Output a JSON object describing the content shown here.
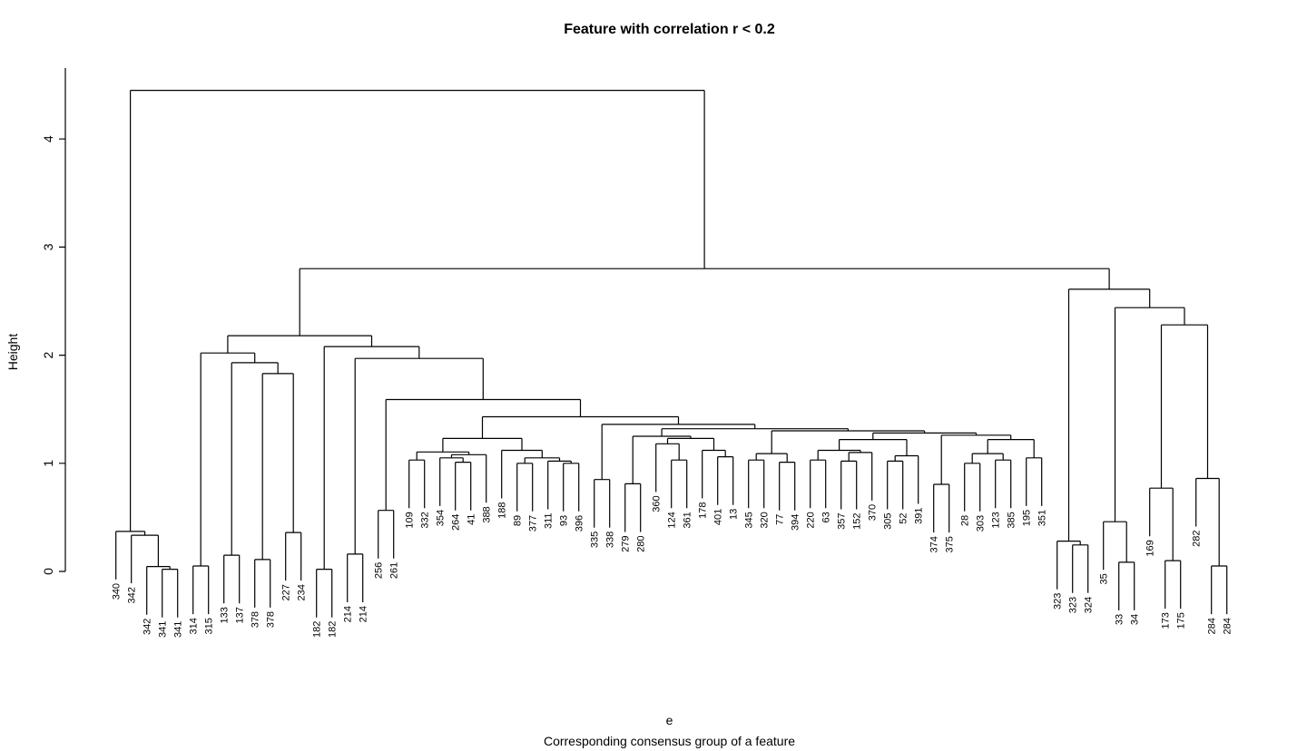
{
  "chart_data": {
    "type": "dendrogram",
    "title": "Feature with correlation r < 0.2",
    "ylabel": "Height",
    "xlabel": "e",
    "sub": "Corresponding consensus group of a feature",
    "line_color": "#000000",
    "background": "#ffffff",
    "yticks": [
      0,
      1,
      2,
      3,
      4
    ],
    "ylim": [
      0,
      4.45
    ],
    "hang_drop": 0.445,
    "leaves_in_order": [
      "340",
      "342",
      "342",
      "341",
      "341",
      "314",
      "315",
      "133",
      "137",
      "378",
      "378",
      "227",
      "234",
      "182",
      "182",
      "214",
      "214",
      "256",
      "261",
      "109",
      "332",
      "354",
      "264",
      "41",
      "388",
      "188",
      "89",
      "377",
      "311",
      "93",
      "396",
      "335",
      "338",
      "279",
      "280",
      "360",
      "124",
      "361",
      "178",
      "401",
      "13",
      "345",
      "320",
      "77",
      "394",
      "220",
      "63",
      "357",
      "152",
      "370",
      "305",
      "52",
      "391",
      "374",
      "375",
      "28",
      "303",
      "123",
      "385",
      "195",
      "351",
      "323",
      "323",
      "324",
      "35",
      "33",
      "34",
      "169",
      "173",
      "175",
      "282",
      "284",
      "284"
    ],
    "tree": {
      "h": 4.45,
      "c": [
        {
          "h": 0.37,
          "c": [
            "340",
            {
              "h": 0.335,
              "c": [
                "342",
                {
                  "h": 0.045,
                  "c": [
                    "342",
                    {
                      "h": 0.02,
                      "c": [
                        "341",
                        "341"
                      ]
                    }
                  ]
                }
              ]
            }
          ]
        },
        {
          "h": 2.8,
          "c": [
            {
              "h": 2.18,
              "c": [
                {
                  "h": 2.02,
                  "c": [
                    {
                      "h": 0.05,
                      "c": [
                        "314",
                        "315"
                      ]
                    },
                    {
                      "h": 1.93,
                      "c": [
                        {
                          "h": 0.15,
                          "c": [
                            "133",
                            "137"
                          ]
                        },
                        {
                          "h": 1.83,
                          "c": [
                            {
                              "h": 0.11,
                              "c": [
                                "378",
                                "378"
                              ]
                            },
                            {
                              "h": 0.36,
                              "c": [
                                "227",
                                "234"
                              ]
                            }
                          ]
                        }
                      ]
                    }
                  ]
                },
                {
                  "h": 2.08,
                  "c": [
                    {
                      "h": 0.02,
                      "c": [
                        "182",
                        "182"
                      ]
                    },
                    {
                      "h": 1.97,
                      "c": [
                        {
                          "h": 0.16,
                          "c": [
                            "214",
                            "214"
                          ]
                        },
                        {
                          "h": 1.59,
                          "c": [
                            {
                              "h": 0.565,
                              "c": [
                                "256",
                                "261"
                              ]
                            },
                            {
                              "h": 1.43,
                              "c": [
                                {
                                  "h": 1.23,
                                  "c": [
                                    {
                                      "h": 1.105,
                                      "c": [
                                        {
                                          "h": 1.03,
                                          "c": [
                                            "109",
                                            "332"
                                          ]
                                        },
                                        {
                                          "h": 1.08,
                                          "c": [
                                            {
                                              "h": 1.05,
                                              "c": [
                                                "354",
                                                {
                                                  "h": 1.01,
                                                  "c": [
                                                    "264",
                                                    "41"
                                                  ]
                                                }
                                              ]
                                            },
                                            "388"
                                          ]
                                        }
                                      ]
                                    },
                                    {
                                      "h": 1.12,
                                      "c": [
                                        "188",
                                        {
                                          "h": 1.05,
                                          "c": [
                                            {
                                              "h": 1.0,
                                              "c": [
                                                "89",
                                                "377"
                                              ]
                                            },
                                            {
                                              "h": 1.02,
                                              "c": [
                                                "311",
                                                {
                                                  "h": 1.0,
                                                  "c": [
                                                    "93",
                                                    "396"
                                                  ]
                                                }
                                              ]
                                            }
                                          ]
                                        }
                                      ]
                                    }
                                  ]
                                },
                                {
                                  "h": 1.36,
                                  "c": [
                                    {
                                      "h": 0.85,
                                      "c": [
                                        "335",
                                        "338"
                                      ]
                                    },
                                    {
                                      "h": 1.32,
                                      "c": [
                                        {
                                          "h": 1.25,
                                          "c": [
                                            {
                                              "h": 0.81,
                                              "c": [
                                                "279",
                                                "280"
                                              ]
                                            },
                                            {
                                              "h": 1.23,
                                              "c": [
                                                {
                                                  "h": 1.18,
                                                  "c": [
                                                    "360",
                                                    {
                                                      "h": 1.03,
                                                      "c": [
                                                        "124",
                                                        "361"
                                                      ]
                                                    }
                                                  ]
                                                },
                                                {
                                                  "h": 1.12,
                                                  "c": [
                                                    "178",
                                                    {
                                                      "h": 1.06,
                                                      "c": [
                                                        "401",
                                                        "13"
                                                      ]
                                                    }
                                                  ]
                                                }
                                              ]
                                            }
                                          ]
                                        },
                                        {
                                          "h": 1.3,
                                          "c": [
                                            {
                                              "h": 1.09,
                                              "c": [
                                                {
                                                  "h": 1.03,
                                                  "c": [
                                                    "345",
                                                    "320"
                                                  ]
                                                },
                                                {
                                                  "h": 1.01,
                                                  "c": [
                                                    "77",
                                                    "394"
                                                  ]
                                                }
                                              ]
                                            },
                                            {
                                              "h": 1.28,
                                              "c": [
                                                {
                                                  "h": 1.22,
                                                  "c": [
                                                    {
                                                      "h": 1.12,
                                                      "c": [
                                                        {
                                                          "h": 1.03,
                                                          "c": [
                                                            "220",
                                                            "63"
                                                          ]
                                                        },
                                                        {
                                                          "h": 1.1,
                                                          "c": [
                                                            {
                                                              "h": 1.02,
                                                              "c": [
                                                                "357",
                                                                "152"
                                                              ]
                                                            },
                                                            "370"
                                                          ]
                                                        }
                                                      ]
                                                    },
                                                    {
                                                      "h": 1.07,
                                                      "c": [
                                                        {
                                                          "h": 1.02,
                                                          "c": [
                                                            "305",
                                                            "52"
                                                          ]
                                                        },
                                                        "391"
                                                      ]
                                                    }
                                                  ]
                                                },
                                                {
                                                  "h": 1.26,
                                                  "c": [
                                                    {
                                                      "h": 0.805,
                                                      "c": [
                                                        "374",
                                                        "375"
                                                      ]
                                                    },
                                                    {
                                                      "h": 1.22,
                                                      "c": [
                                                        {
                                                          "h": 1.09,
                                                          "c": [
                                                            {
                                                              "h": 1.0,
                                                              "c": [
                                                                "28",
                                                                "303"
                                                              ]
                                                            },
                                                            {
                                                              "h": 1.03,
                                                              "c": [
                                                                "123",
                                                                "385"
                                                              ]
                                                            }
                                                          ]
                                                        },
                                                        {
                                                          "h": 1.05,
                                                          "c": [
                                                            "195",
                                                            "351"
                                                          ]
                                                        }
                                                      ]
                                                    }
                                                  ]
                                                }
                                              ]
                                            }
                                          ]
                                        }
                                      ]
                                    }
                                  ]
                                }
                              ]
                            }
                          ]
                        }
                      ]
                    }
                  ]
                }
              ]
            },
            {
              "h": 2.61,
              "c": [
                {
                  "h": 0.28,
                  "c": [
                    "323",
                    {
                      "h": 0.245,
                      "c": [
                        "323",
                        "324"
                      ]
                    }
                  ]
                },
                {
                  "h": 2.44,
                  "c": [
                    {
                      "h": 0.46,
                      "c": [
                        "35",
                        {
                          "h": 0.085,
                          "c": [
                            "33",
                            "34"
                          ]
                        }
                      ]
                    },
                    {
                      "h": 2.28,
                      "c": [
                        {
                          "h": 0.77,
                          "c": [
                            "169",
                            {
                              "h": 0.1,
                              "c": [
                                "173",
                                "175"
                              ]
                            }
                          ]
                        },
                        {
                          "h": 0.86,
                          "c": [
                            "282",
                            {
                              "h": 0.05,
                              "c": [
                                "284",
                                "284"
                              ]
                            }
                          ]
                        }
                      ]
                    }
                  ]
                }
              ]
            }
          ]
        }
      ]
    }
  }
}
